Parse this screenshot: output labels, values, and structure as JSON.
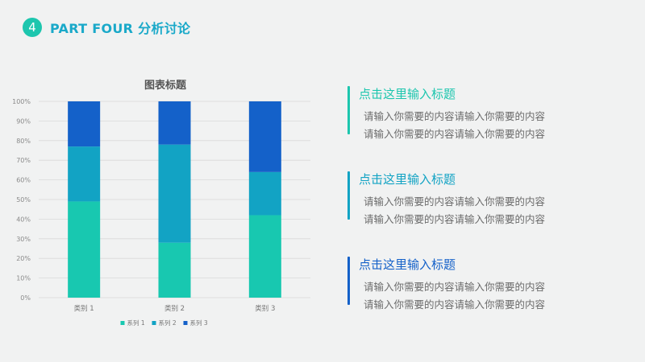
{
  "header": {
    "badge_number": "4",
    "title": "PART FOUR 分析讨论"
  },
  "colors": {
    "series1": "#18c8b0",
    "series2": "#12a3c4",
    "series3": "#1461c9",
    "accent_teal": "#1dc6ae",
    "accent_blue": "#1aa9c9"
  },
  "chart_data": {
    "type": "bar",
    "stacked": true,
    "percent": true,
    "title": "图表标题",
    "categories": [
      "类别 1",
      "类别 2",
      "类别 3"
    ],
    "series": [
      {
        "name": "系列 1",
        "values": [
          49,
          28,
          42
        ]
      },
      {
        "name": "系列 2",
        "values": [
          28,
          50,
          22
        ]
      },
      {
        "name": "系列 3",
        "values": [
          23,
          22,
          36
        ]
      }
    ],
    "ylim": [
      0,
      100
    ],
    "yticks": [
      "0%",
      "10%",
      "20%",
      "30%",
      "40%",
      "50%",
      "60%",
      "70%",
      "80%",
      "90%",
      "100%"
    ],
    "grid": true,
    "legend_position": "bottom"
  },
  "text_blocks": [
    {
      "title": "点击这里输入标题",
      "lines": [
        "请输入你需要的内容请输入你需要的内容",
        "请输入你需要的内容请输入你需要的内容"
      ],
      "color": "#1dc6ae"
    },
    {
      "title": "点击这里输入标题",
      "lines": [
        "请输入你需要的内容请输入你需要的内容",
        "请输入你需要的内容请输入你需要的内容"
      ],
      "color": "#12a3c4"
    },
    {
      "title": "点击这里输入标题",
      "lines": [
        "请输入你需要的内容请输入你需要的内容",
        "请输入你需要的内容请输入你需要的内容"
      ],
      "color": "#1461c9"
    }
  ]
}
